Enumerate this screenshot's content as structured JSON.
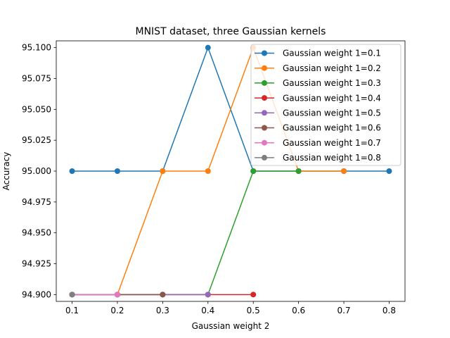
{
  "chart_data": {
    "type": "line",
    "title": "MNIST dataset, three Gaussian kernels",
    "xlabel": "Gaussian weight 2",
    "ylabel": "Accuracy",
    "xlim": [
      0.065,
      0.835
    ],
    "ylim": [
      94.8945,
      95.1055
    ],
    "xticks": [
      0.1,
      0.2,
      0.3,
      0.4,
      0.5,
      0.6,
      0.7,
      0.8
    ],
    "xtick_labels": [
      "0.1",
      "0.2",
      "0.3",
      "0.4",
      "0.5",
      "0.6",
      "0.7",
      "0.8"
    ],
    "yticks": [
      94.9,
      94.925,
      94.95,
      94.975,
      95.0,
      95.025,
      95.05,
      95.075,
      95.1
    ],
    "ytick_labels": [
      "94.900",
      "94.925",
      "94.950",
      "94.975",
      "95.000",
      "95.025",
      "95.050",
      "95.075",
      "95.100"
    ],
    "grid": false,
    "legend_position": "top-right",
    "series": [
      {
        "name": "Gaussian weight 1=0.1",
        "color": "#1f77b4",
        "x": [
          0.1,
          0.2,
          0.3,
          0.4,
          0.5,
          0.6,
          0.7,
          0.8
        ],
        "y": [
          95.0,
          95.0,
          95.0,
          95.1,
          95.0,
          95.0,
          95.0,
          95.0
        ]
      },
      {
        "name": "Gaussian weight 1=0.2",
        "color": "#ff7f0e",
        "x": [
          0.1,
          0.2,
          0.3,
          0.4,
          0.5,
          0.6,
          0.7
        ],
        "y": [
          94.9,
          94.9,
          95.0,
          95.0,
          95.1,
          95.0,
          95.0
        ]
      },
      {
        "name": "Gaussian weight 1=0.3",
        "color": "#2ca02c",
        "x": [
          0.1,
          0.2,
          0.3,
          0.4,
          0.5,
          0.6
        ],
        "y": [
          94.9,
          94.9,
          94.9,
          94.9,
          95.0,
          95.0
        ]
      },
      {
        "name": "Gaussian weight 1=0.4",
        "color": "#d62728",
        "x": [
          0.1,
          0.2,
          0.3,
          0.4,
          0.5
        ],
        "y": [
          94.9,
          94.9,
          94.9,
          94.9,
          94.9
        ]
      },
      {
        "name": "Gaussian weight 1=0.5",
        "color": "#9467bd",
        "x": [
          0.1,
          0.2,
          0.3,
          0.4
        ],
        "y": [
          94.9,
          94.9,
          94.9,
          94.9
        ]
      },
      {
        "name": "Gaussian weight 1=0.6",
        "color": "#8c564b",
        "x": [
          0.1,
          0.2,
          0.3
        ],
        "y": [
          94.9,
          94.9,
          94.9
        ]
      },
      {
        "name": "Gaussian weight 1=0.7",
        "color": "#e377c2",
        "x": [
          0.1,
          0.2
        ],
        "y": [
          94.9,
          94.9
        ]
      },
      {
        "name": "Gaussian weight 1=0.8",
        "color": "#7f7f7f",
        "x": [
          0.1
        ],
        "y": [
          94.9
        ]
      }
    ]
  }
}
